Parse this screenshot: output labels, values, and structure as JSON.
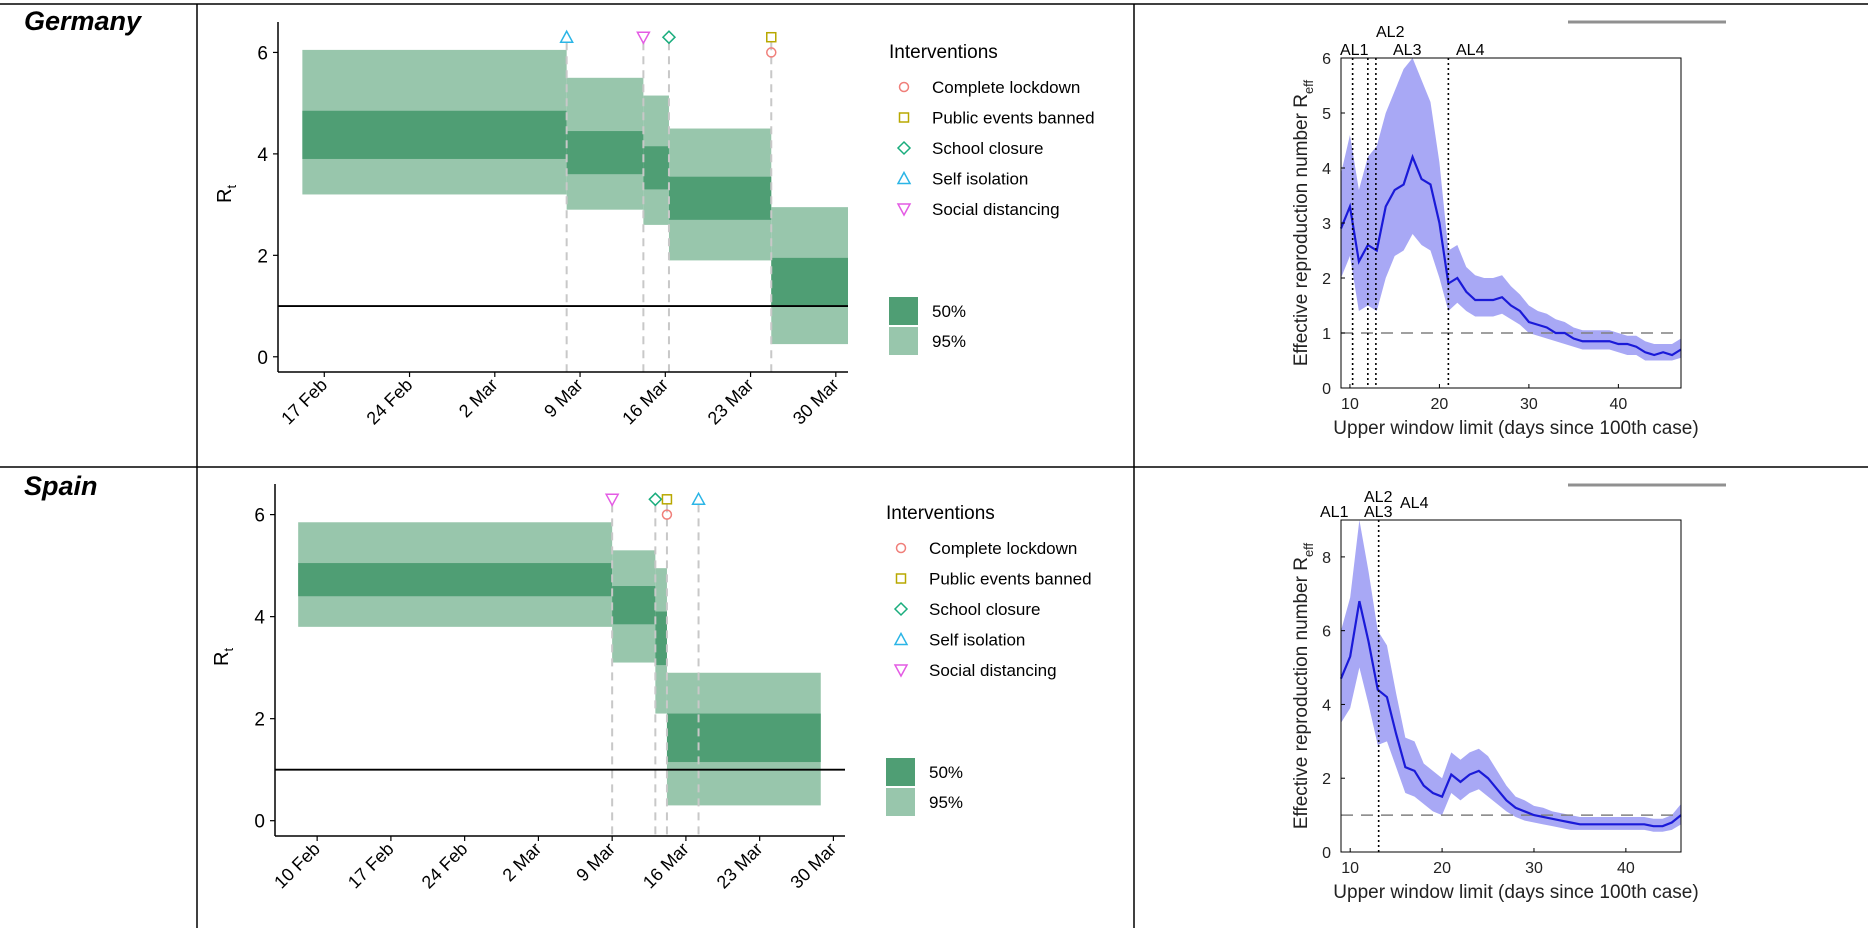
{
  "panels": [
    {
      "country": "Germany",
      "rt": {
        "ylabel": "R",
        "ylabel_sub": "t",
        "x_ticks": [
          {
            "label": "17 Feb",
            "day": 17
          },
          {
            "label": "24 Feb",
            "day": 24
          },
          {
            "label": "2 Mar",
            "day": 31
          },
          {
            "label": "9 Mar",
            "day": 38
          },
          {
            "label": "16 Mar",
            "day": 45
          },
          {
            "label": "23 Mar",
            "day": 52
          },
          {
            "label": "30 Mar",
            "day": 59
          }
        ],
        "y_ticks": [
          0,
          2,
          4,
          6
        ],
        "xlim": [
          13.2,
          60
        ],
        "ylim": [
          -0.3,
          6.6
        ],
        "legend": {
          "title": "Interventions",
          "items": [
            "Complete lockdown",
            "Public events banned",
            "School closure",
            "Self isolation",
            "Social distancing"
          ],
          "ci": [
            "50%",
            "95%"
          ]
        },
        "segments": [
          {
            "x0": 15.2,
            "x1": 36.9,
            "lo95": 3.2,
            "lo50": 3.9,
            "hi50": 4.85,
            "hi95": 6.05
          },
          {
            "x0": 36.9,
            "x1": 43.2,
            "lo95": 2.9,
            "lo50": 3.6,
            "hi50": 4.45,
            "hi95": 5.5
          },
          {
            "x0": 43.2,
            "x1": 45.3,
            "lo95": 2.6,
            "lo50": 3.3,
            "hi50": 4.15,
            "hi95": 5.15
          },
          {
            "x0": 45.3,
            "x1": 53.7,
            "lo95": 1.9,
            "lo50": 2.7,
            "hi50": 3.55,
            "hi95": 4.5
          },
          {
            "x0": 53.7,
            "x1": 60,
            "lo95": 0.25,
            "lo50": 1.0,
            "hi50": 1.95,
            "hi95": 2.95
          }
        ],
        "markers": [
          {
            "type": "self_isolation",
            "x": 36.9,
            "y": 6.3
          },
          {
            "type": "social_distancing",
            "x": 43.2,
            "y": 6.3
          },
          {
            "type": "school_closure",
            "x": 45.3,
            "y": 6.3
          },
          {
            "type": "public_events_banned",
            "x": 53.7,
            "y": 6.3
          },
          {
            "type": "complete_lockdown",
            "x": 53.7,
            "y": 6.0
          }
        ],
        "dashed_x": [
          36.9,
          43.2,
          45.3,
          53.7
        ],
        "hline": 1
      },
      "reff": {
        "xlabel": "Upper window limit (days since 100th case)",
        "ylabel": "Effective reproduction number R",
        "ylabel_sub": "eff",
        "xlim": [
          9,
          47
        ],
        "ylim": [
          0,
          6
        ],
        "x_ticks": [
          10,
          20,
          30,
          40
        ],
        "y_ticks": [
          0,
          1,
          2,
          3,
          4,
          5,
          6
        ],
        "al_lines": [
          {
            "label": "AL1",
            "x": 10.3
          },
          {
            "label": "AL2",
            "x": 12.0
          },
          {
            "label": "AL3",
            "x": 12.9
          },
          {
            "label": "AL4",
            "x": 21.0
          }
        ],
        "x": [
          9,
          10,
          11,
          12,
          13,
          14,
          15,
          16,
          17,
          18,
          19,
          20,
          21,
          22,
          23,
          24,
          25,
          26,
          27,
          28,
          29,
          30,
          31,
          32,
          33,
          34,
          35,
          36,
          37,
          38,
          39,
          40,
          41,
          42,
          43,
          44,
          45,
          46,
          47
        ],
        "mean": [
          2.9,
          3.3,
          2.3,
          2.6,
          2.5,
          3.3,
          3.6,
          3.7,
          4.2,
          3.8,
          3.7,
          3.0,
          1.9,
          2.0,
          1.75,
          1.6,
          1.6,
          1.6,
          1.65,
          1.5,
          1.4,
          1.2,
          1.15,
          1.1,
          1.0,
          1.0,
          0.9,
          0.85,
          0.85,
          0.85,
          0.85,
          0.8,
          0.8,
          0.75,
          0.65,
          0.6,
          0.65,
          0.6,
          0.7
        ],
        "lower": [
          2.0,
          2.4,
          1.4,
          1.5,
          1.4,
          2.0,
          2.4,
          2.5,
          2.8,
          2.6,
          2.5,
          2.0,
          1.4,
          1.55,
          1.4,
          1.3,
          1.3,
          1.3,
          1.35,
          1.25,
          1.15,
          1.0,
          0.95,
          0.9,
          0.85,
          0.8,
          0.75,
          0.7,
          0.7,
          0.7,
          0.7,
          0.65,
          0.6,
          0.6,
          0.5,
          0.5,
          0.5,
          0.5,
          0.55
        ],
        "upper": [
          3.9,
          4.6,
          3.6,
          4.2,
          4.4,
          5.0,
          5.4,
          5.8,
          6.0,
          5.6,
          5.2,
          4.1,
          2.5,
          2.6,
          2.2,
          2.05,
          2.0,
          2.0,
          2.05,
          1.85,
          1.7,
          1.5,
          1.4,
          1.35,
          1.25,
          1.2,
          1.1,
          1.05,
          1.05,
          1.05,
          1.05,
          1.0,
          0.95,
          0.95,
          0.85,
          0.8,
          0.8,
          0.8,
          0.9
        ],
        "hline": 1
      }
    },
    {
      "country": "Spain",
      "rt": {
        "ylabel": "R",
        "ylabel_sub": "t",
        "x_ticks": [
          {
            "label": "10 Feb",
            "day": 10
          },
          {
            "label": "17 Feb",
            "day": 17
          },
          {
            "label": "24 Feb",
            "day": 24
          },
          {
            "label": "2 Mar",
            "day": 31
          },
          {
            "label": "9 Mar",
            "day": 38
          },
          {
            "label": "16 Mar",
            "day": 45
          },
          {
            "label": "23 Mar",
            "day": 52
          },
          {
            "label": "30 Mar",
            "day": 59
          }
        ],
        "y_ticks": [
          0,
          2,
          4,
          6
        ],
        "xlim": [
          6.0,
          60.1
        ],
        "ylim": [
          -0.3,
          6.6
        ],
        "legend": {
          "title": "Interventions",
          "items": [
            "Complete lockdown",
            "Public events banned",
            "School closure",
            "Self isolation",
            "Social distancing"
          ],
          "ci": [
            "50%",
            "95%"
          ]
        },
        "segments": [
          {
            "x0": 8.2,
            "x1": 38.0,
            "lo95": 3.8,
            "lo50": 4.4,
            "hi50": 5.05,
            "hi95": 5.85
          },
          {
            "x0": 38.0,
            "x1": 42.1,
            "lo95": 3.1,
            "lo50": 3.85,
            "hi50": 4.6,
            "hi95": 5.3
          },
          {
            "x0": 42.1,
            "x1": 43.2,
            "lo95": 2.1,
            "lo50": 3.05,
            "hi50": 4.1,
            "hi95": 4.95
          },
          {
            "x0": 43.2,
            "x1": 57.8,
            "lo95": 0.3,
            "lo50": 1.15,
            "hi50": 2.1,
            "hi95": 2.9
          }
        ],
        "markers": [
          {
            "type": "social_distancing",
            "x": 38.0,
            "y": 6.3
          },
          {
            "type": "school_closure",
            "x": 42.1,
            "y": 6.3
          },
          {
            "type": "public_events_banned",
            "x": 43.2,
            "y": 6.3
          },
          {
            "type": "complete_lockdown",
            "x": 43.2,
            "y": 6.0
          },
          {
            "type": "self_isolation",
            "x": 46.2,
            "y": 6.3
          }
        ],
        "dashed_x": [
          38.0,
          42.1,
          43.2,
          46.2
        ],
        "hline": 1
      },
      "reff": {
        "xlabel": "Upper window limit (days since 100th case)",
        "ylabel": "Effective reproduction number R",
        "ylabel_sub": "eff",
        "xlim": [
          9,
          46
        ],
        "ylim": [
          0,
          9
        ],
        "x_ticks": [
          10,
          20,
          30,
          40
        ],
        "y_ticks": [
          0,
          2,
          4,
          6,
          8
        ],
        "al_lines": [
          {
            "label": "AL1",
            "x": 10.2
          },
          {
            "label": "AL2",
            "x": 13.1
          },
          {
            "label": "AL3",
            "x": 13.2
          },
          {
            "label": "AL4",
            "x": 16.0
          }
        ],
        "dotted_x": [
          13.1
        ],
        "x": [
          9,
          10,
          11,
          12,
          13,
          14,
          15,
          16,
          17,
          18,
          19,
          20,
          21,
          22,
          23,
          24,
          25,
          26,
          27,
          28,
          29,
          30,
          31,
          32,
          33,
          34,
          35,
          36,
          37,
          38,
          39,
          40,
          41,
          42,
          43,
          44,
          45,
          46
        ],
        "mean": [
          4.7,
          5.3,
          6.8,
          5.7,
          4.4,
          4.2,
          3.2,
          2.3,
          2.2,
          1.8,
          1.6,
          1.5,
          2.1,
          1.9,
          2.1,
          2.2,
          2.0,
          1.7,
          1.4,
          1.2,
          1.1,
          1.0,
          0.95,
          0.9,
          0.85,
          0.8,
          0.75,
          0.75,
          0.75,
          0.75,
          0.75,
          0.75,
          0.75,
          0.75,
          0.7,
          0.7,
          0.8,
          1.0
        ],
        "lower": [
          3.5,
          3.9,
          5.0,
          4.0,
          2.9,
          3.0,
          2.3,
          1.6,
          1.5,
          1.3,
          1.1,
          1.0,
          1.6,
          1.4,
          1.6,
          1.7,
          1.5,
          1.3,
          1.1,
          0.95,
          0.85,
          0.8,
          0.75,
          0.7,
          0.65,
          0.6,
          0.6,
          0.6,
          0.6,
          0.6,
          0.6,
          0.6,
          0.6,
          0.6,
          0.55,
          0.55,
          0.6,
          0.75
        ],
        "upper": [
          6.0,
          6.9,
          9.0,
          7.6,
          6.0,
          5.6,
          4.3,
          3.1,
          3.0,
          2.4,
          2.2,
          2.0,
          2.7,
          2.5,
          2.7,
          2.8,
          2.6,
          2.2,
          1.8,
          1.5,
          1.4,
          1.25,
          1.2,
          1.1,
          1.05,
          1.0,
          0.95,
          0.95,
          0.95,
          0.95,
          0.95,
          0.95,
          0.95,
          0.95,
          0.9,
          0.9,
          1.0,
          1.3
        ],
        "hline": 1
      }
    }
  ],
  "chart_data": [
    {
      "type": "bar",
      "title": "",
      "subtitle": "Germany",
      "ylabel": "Rt",
      "categories": [
        "17 Feb",
        "24 Feb",
        "2 Mar",
        "9 Mar",
        "16 Mar",
        "23 Mar",
        "30 Mar"
      ],
      "ylim": [
        0,
        6
      ],
      "legend": [
        "Complete lockdown",
        "Public events banned",
        "School closure",
        "Self isolation",
        "Social distancing",
        "50%",
        "95%"
      ]
    },
    {
      "type": "line",
      "title": "",
      "subtitle": "Germany",
      "xlabel": "Upper window limit (days since 100th case)",
      "ylabel": "Effective reproduction number Reff",
      "xlim": [
        9,
        47
      ],
      "ylim": [
        0,
        6
      ]
    },
    {
      "type": "bar",
      "title": "",
      "subtitle": "Spain",
      "ylabel": "Rt",
      "categories": [
        "10 Feb",
        "17 Feb",
        "24 Feb",
        "2 Mar",
        "9 Mar",
        "16 Mar",
        "23 Mar",
        "30 Mar"
      ],
      "ylim": [
        0,
        6
      ],
      "legend": [
        "Complete lockdown",
        "Public events banned",
        "School closure",
        "Self isolation",
        "Social distancing",
        "50%",
        "95%"
      ]
    },
    {
      "type": "line",
      "title": "",
      "subtitle": "Spain",
      "xlabel": "Upper window limit (days since 100th case)",
      "ylabel": "Effective reproduction number Reff",
      "xlim": [
        9,
        46
      ],
      "ylim": [
        0,
        9
      ]
    }
  ],
  "colors": {
    "ci50": "#4f9e74",
    "ci95": "#98c6ac",
    "lockdown": "#f07f7a",
    "events": "#b8a800",
    "school": "#1aad7d",
    "isolation": "#2bb5e6",
    "distancing": "#e45be4",
    "reff_band": "#a8a8f5",
    "reff_line": "#1a1ad8",
    "table_line": "#000000"
  }
}
